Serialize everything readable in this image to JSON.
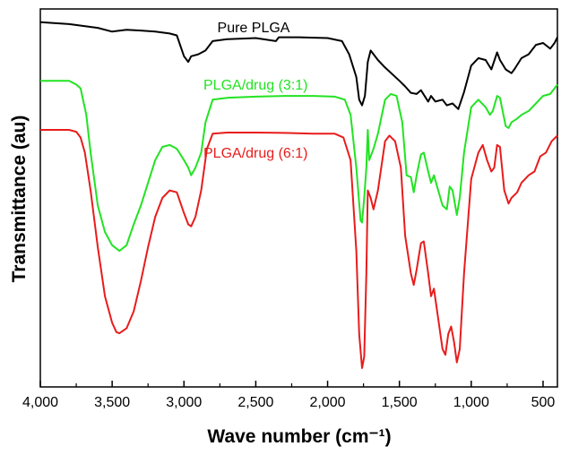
{
  "chart_data": {
    "type": "line",
    "title": "",
    "xlabel": "Wave number (cm⁻¹)",
    "ylabel": "Transmittance (au)",
    "xlim": [
      4000,
      400
    ],
    "x_reversed": true,
    "y_tick_labels": false,
    "grid": false,
    "legend": "inline labels next to curves",
    "x_ticks": [
      4000,
      3500,
      3000,
      2500,
      2000,
      1500,
      1000,
      500
    ],
    "x_tick_labels": [
      "4,000",
      "3,500",
      "3,000",
      "2,500",
      "2,000",
      "1,500",
      "1,000",
      "500"
    ],
    "ylim": [
      0,
      100
    ],
    "series": [
      {
        "name": "Pure PLGA",
        "color": "#000000",
        "points": [
          [
            4000,
            96.5
          ],
          [
            3800,
            96
          ],
          [
            3600,
            95
          ],
          [
            3500,
            94
          ],
          [
            3400,
            94.5
          ],
          [
            3300,
            94.3
          ],
          [
            3200,
            94
          ],
          [
            3100,
            93.5
          ],
          [
            3050,
            93
          ],
          [
            3000,
            87.5
          ],
          [
            2970,
            86
          ],
          [
            2950,
            87.5
          ],
          [
            2900,
            88
          ],
          [
            2850,
            89
          ],
          [
            2800,
            91.5
          ],
          [
            2700,
            92
          ],
          [
            2500,
            92.3
          ],
          [
            2360,
            91.5
          ],
          [
            2340,
            92.5
          ],
          [
            2200,
            92.5
          ],
          [
            2000,
            92.3
          ],
          [
            1900,
            91.5
          ],
          [
            1850,
            88
          ],
          [
            1800,
            82
          ],
          [
            1780,
            76
          ],
          [
            1760,
            74.5
          ],
          [
            1740,
            77
          ],
          [
            1720,
            86
          ],
          [
            1700,
            89
          ],
          [
            1650,
            86.5
          ],
          [
            1600,
            84.5
          ],
          [
            1500,
            81
          ],
          [
            1460,
            79.5
          ],
          [
            1420,
            77.8
          ],
          [
            1380,
            77.5
          ],
          [
            1350,
            78.5
          ],
          [
            1300,
            75.5
          ],
          [
            1280,
            77
          ],
          [
            1250,
            75.5
          ],
          [
            1200,
            76
          ],
          [
            1170,
            74.5
          ],
          [
            1130,
            75
          ],
          [
            1090,
            73.5
          ],
          [
            1050,
            78
          ],
          [
            1000,
            85
          ],
          [
            950,
            87
          ],
          [
            900,
            86.5
          ],
          [
            860,
            84
          ],
          [
            820,
            88.5
          ],
          [
            800,
            86.5
          ],
          [
            760,
            84
          ],
          [
            720,
            83
          ],
          [
            700,
            84
          ],
          [
            650,
            87
          ],
          [
            600,
            88
          ],
          [
            550,
            90.5
          ],
          [
            500,
            91
          ],
          [
            450,
            89.5
          ],
          [
            420,
            91
          ],
          [
            400,
            92.5
          ]
        ]
      },
      {
        "name": "PLGA/drug (3:1)",
        "color": "#22e322",
        "points": [
          [
            4000,
            81
          ],
          [
            3800,
            81
          ],
          [
            3750,
            80
          ],
          [
            3720,
            79
          ],
          [
            3680,
            72
          ],
          [
            3650,
            62
          ],
          [
            3600,
            48
          ],
          [
            3550,
            41
          ],
          [
            3500,
            37.5
          ],
          [
            3450,
            36
          ],
          [
            3400,
            37.5
          ],
          [
            3350,
            43
          ],
          [
            3300,
            48
          ],
          [
            3250,
            54
          ],
          [
            3200,
            60
          ],
          [
            3150,
            63.5
          ],
          [
            3100,
            64
          ],
          [
            3050,
            63
          ],
          [
            3000,
            60
          ],
          [
            2970,
            58
          ],
          [
            2950,
            56
          ],
          [
            2920,
            58
          ],
          [
            2880,
            62
          ],
          [
            2850,
            70
          ],
          [
            2800,
            76
          ],
          [
            2700,
            76.5
          ],
          [
            2500,
            76.8
          ],
          [
            2300,
            77
          ],
          [
            2100,
            77
          ],
          [
            1950,
            76.8
          ],
          [
            1880,
            76
          ],
          [
            1840,
            72
          ],
          [
            1800,
            58
          ],
          [
            1770,
            44
          ],
          [
            1760,
            43.5
          ],
          [
            1745,
            50
          ],
          [
            1730,
            58
          ],
          [
            1720,
            68
          ],
          [
            1710,
            60
          ],
          [
            1680,
            63
          ],
          [
            1650,
            67
          ],
          [
            1600,
            76
          ],
          [
            1560,
            77.5
          ],
          [
            1520,
            77
          ],
          [
            1480,
            70
          ],
          [
            1450,
            56
          ],
          [
            1420,
            55.5
          ],
          [
            1400,
            51.5
          ],
          [
            1380,
            56
          ],
          [
            1350,
            61.5
          ],
          [
            1330,
            62
          ],
          [
            1300,
            57
          ],
          [
            1280,
            54
          ],
          [
            1260,
            56
          ],
          [
            1230,
            52
          ],
          [
            1200,
            48
          ],
          [
            1170,
            47
          ],
          [
            1150,
            53
          ],
          [
            1130,
            52
          ],
          [
            1100,
            45.5
          ],
          [
            1080,
            50
          ],
          [
            1050,
            62
          ],
          [
            1000,
            74
          ],
          [
            950,
            76
          ],
          [
            900,
            74
          ],
          [
            870,
            72
          ],
          [
            850,
            73
          ],
          [
            820,
            77
          ],
          [
            800,
            76.5
          ],
          [
            760,
            69
          ],
          [
            740,
            68.5
          ],
          [
            720,
            70
          ],
          [
            680,
            71
          ],
          [
            650,
            72
          ],
          [
            600,
            73
          ],
          [
            550,
            75
          ],
          [
            500,
            77
          ],
          [
            450,
            77.5
          ],
          [
            420,
            79
          ],
          [
            400,
            80
          ]
        ]
      },
      {
        "name": "PLGA/drug (6:1)",
        "color": "#e81c1c",
        "points": [
          [
            4000,
            68
          ],
          [
            3800,
            68
          ],
          [
            3750,
            67.5
          ],
          [
            3720,
            66
          ],
          [
            3690,
            62
          ],
          [
            3650,
            52
          ],
          [
            3600,
            37
          ],
          [
            3550,
            24
          ],
          [
            3500,
            17
          ],
          [
            3470,
            14.5
          ],
          [
            3450,
            14.2
          ],
          [
            3400,
            15.5
          ],
          [
            3350,
            20
          ],
          [
            3300,
            28
          ],
          [
            3250,
            37
          ],
          [
            3200,
            45
          ],
          [
            3150,
            50
          ],
          [
            3100,
            52
          ],
          [
            3050,
            51.5
          ],
          [
            3000,
            46
          ],
          [
            2970,
            43
          ],
          [
            2950,
            42.5
          ],
          [
            2920,
            45
          ],
          [
            2880,
            52
          ],
          [
            2840,
            63
          ],
          [
            2800,
            67
          ],
          [
            2700,
            67.3
          ],
          [
            2500,
            67.3
          ],
          [
            2300,
            67.2
          ],
          [
            2100,
            67
          ],
          [
            1950,
            67
          ],
          [
            1890,
            66
          ],
          [
            1840,
            60
          ],
          [
            1800,
            36
          ],
          [
            1780,
            14
          ],
          [
            1760,
            5
          ],
          [
            1745,
            8
          ],
          [
            1730,
            30
          ],
          [
            1720,
            52
          ],
          [
            1700,
            50
          ],
          [
            1680,
            47
          ],
          [
            1650,
            52
          ],
          [
            1600,
            65
          ],
          [
            1570,
            66.5
          ],
          [
            1530,
            65
          ],
          [
            1490,
            58
          ],
          [
            1460,
            40
          ],
          [
            1420,
            30
          ],
          [
            1400,
            27
          ],
          [
            1380,
            31
          ],
          [
            1350,
            38
          ],
          [
            1330,
            38.5
          ],
          [
            1300,
            30
          ],
          [
            1280,
            24
          ],
          [
            1260,
            26
          ],
          [
            1230,
            18
          ],
          [
            1200,
            10
          ],
          [
            1180,
            8.5
          ],
          [
            1160,
            14
          ],
          [
            1140,
            16
          ],
          [
            1120,
            12
          ],
          [
            1100,
            6.5
          ],
          [
            1080,
            10
          ],
          [
            1050,
            30
          ],
          [
            1000,
            55
          ],
          [
            950,
            62
          ],
          [
            920,
            64
          ],
          [
            890,
            60
          ],
          [
            860,
            57
          ],
          [
            840,
            58
          ],
          [
            820,
            64
          ],
          [
            800,
            63.5
          ],
          [
            770,
            52
          ],
          [
            740,
            48.5
          ],
          [
            720,
            50
          ],
          [
            680,
            51.5
          ],
          [
            650,
            54
          ],
          [
            600,
            56
          ],
          [
            560,
            57
          ],
          [
            520,
            61
          ],
          [
            480,
            62
          ],
          [
            440,
            65
          ],
          [
            400,
            66.5
          ]
        ]
      }
    ]
  }
}
